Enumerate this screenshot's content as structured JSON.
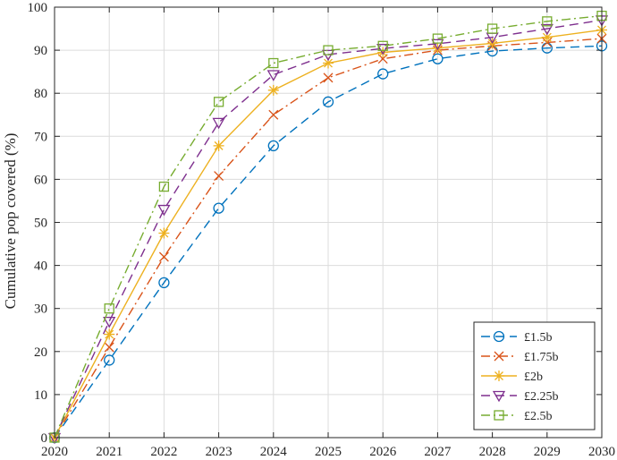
{
  "chart_data": {
    "type": "line",
    "title": "",
    "xlabel": "",
    "ylabel": "Cumulative pop covered (%)",
    "x": [
      2020,
      2021,
      2022,
      2023,
      2024,
      2025,
      2026,
      2027,
      2028,
      2029,
      2030
    ],
    "xlim": [
      2020,
      2030
    ],
    "ylim": [
      0,
      100
    ],
    "xticks": [
      2020,
      2021,
      2022,
      2023,
      2024,
      2025,
      2026,
      2027,
      2028,
      2029,
      2030
    ],
    "yticks": [
      0,
      10,
      20,
      30,
      40,
      50,
      60,
      70,
      80,
      90,
      100
    ],
    "grid": true,
    "legend_position": "bottom-right",
    "series": [
      {
        "name": "£1.5b",
        "color": "#0072BD",
        "marker": "circle",
        "line": "dashed",
        "values": [
          0,
          18,
          36,
          53.3,
          67.8,
          78,
          84.5,
          88,
          89.8,
          90.5,
          91
        ]
      },
      {
        "name": "£1.75b",
        "color": "#D95319",
        "marker": "x",
        "line": "dash-dot",
        "values": [
          0,
          21,
          42,
          60.8,
          75,
          83.6,
          88,
          90,
          91,
          91.8,
          92.7
        ]
      },
      {
        "name": "£2b",
        "color": "#EDB120",
        "marker": "asterisk",
        "line": "solid",
        "values": [
          0,
          24,
          47.5,
          67.8,
          80.7,
          87,
          89.5,
          90.5,
          91.6,
          93,
          94.7
        ]
      },
      {
        "name": "£2.25b",
        "color": "#7E2F8E",
        "marker": "triangle-down",
        "line": "dashed",
        "values": [
          0,
          27,
          53,
          73.2,
          84.3,
          89,
          90.4,
          91.5,
          93,
          95,
          97
        ]
      },
      {
        "name": "£2.5b",
        "color": "#77AC30",
        "marker": "square",
        "line": "dash-dot",
        "values": [
          0,
          30,
          58.3,
          78,
          87,
          90,
          91,
          92.7,
          95,
          96.7,
          98
        ]
      }
    ]
  }
}
